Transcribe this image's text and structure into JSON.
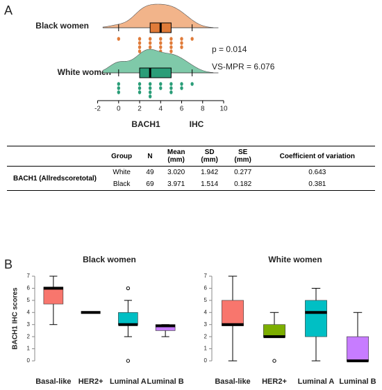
{
  "panels": [
    "A",
    "B"
  ],
  "chart_data": [
    {
      "type": "raincloud",
      "groups": [
        {
          "name": "Black women",
          "color": "#e07b39",
          "fill": "#f2b48a",
          "min": 0,
          "q1": 3,
          "median": 4,
          "q3": 5,
          "max": 7,
          "points": [
            0,
            2,
            2,
            2,
            2,
            3,
            3,
            3,
            3,
            4,
            4,
            4,
            4,
            5,
            5,
            5,
            5,
            6,
            6,
            6,
            7
          ]
        },
        {
          "name": "White women",
          "color": "#2a9d78",
          "fill": "#7fc9a9",
          "min": 0,
          "q1": 2,
          "median": 3,
          "q3": 5,
          "max": 7,
          "points": [
            0,
            0,
            0,
            2,
            2,
            2,
            3,
            3,
            3,
            3,
            4,
            4,
            5,
            5,
            5,
            6,
            6,
            7
          ]
        }
      ],
      "annotations": [
        "p = 0.014",
        "VS-MPR = 6.076"
      ],
      "xlabel_parts": [
        "BACH1",
        "IHC"
      ],
      "xlim": [
        -2.5,
        10
      ],
      "xticks": [
        -2,
        0,
        2,
        4,
        6,
        8,
        10
      ]
    },
    {
      "type": "box",
      "title": "Black women",
      "ylabel": "BACH1 IHC scores",
      "categories": [
        "Basal-like",
        "HER2+",
        "Luminal A",
        "Luminal B"
      ],
      "colors": [
        "#f8766d",
        "#7cae00",
        "#00bfc4",
        "#c77cff"
      ],
      "boxes": [
        {
          "min": 3,
          "q1": 4.7,
          "median": 6,
          "q3": 6.1,
          "max": 7,
          "outliers": []
        },
        {
          "min": 4,
          "q1": 4,
          "median": 4,
          "q3": 4,
          "max": 4,
          "outliers": []
        },
        {
          "min": 2,
          "q1": 3,
          "median": 3,
          "q3": 4,
          "max": 5,
          "outliers": [
            0,
            6
          ]
        },
        {
          "min": 2,
          "q1": 2.5,
          "median": 2.9,
          "q3": 3,
          "max": 3,
          "outliers": []
        }
      ],
      "ylim": [
        0,
        7
      ],
      "yticks": [
        0,
        1,
        2,
        3,
        4,
        5,
        6,
        7
      ]
    },
    {
      "type": "box",
      "title": "White women",
      "categories": [
        "Basal-like",
        "HER2+",
        "Luminal A",
        "Luminal B"
      ],
      "colors": [
        "#f8766d",
        "#7cae00",
        "#00bfc4",
        "#c77cff"
      ],
      "boxes": [
        {
          "min": 0,
          "q1": 2.9,
          "median": 3,
          "q3": 5,
          "max": 7,
          "outliers": []
        },
        {
          "min": 2,
          "q1": 2,
          "median": 2,
          "q3": 3,
          "max": 4,
          "outliers": [
            0
          ]
        },
        {
          "min": 0,
          "q1": 2,
          "median": 4,
          "q3": 5,
          "max": 6,
          "outliers": []
        },
        {
          "min": 0,
          "q1": 0,
          "median": 0,
          "q3": 2,
          "max": 4,
          "outliers": []
        }
      ],
      "ylim": [
        0,
        7
      ],
      "yticks": [
        0,
        1,
        2,
        3,
        4,
        5,
        6,
        7
      ]
    }
  ],
  "table": {
    "header": [
      "Group",
      "N",
      "Mean (mm)",
      "SD (mm)",
      "SE (mm)",
      "Coefficient of variation"
    ],
    "row_label": "BACH1 (Allredscoretotal)",
    "rows": [
      [
        "White",
        "49",
        "3.020",
        "1.942",
        "0.277",
        "0.643"
      ],
      [
        "Black",
        "69",
        "3.971",
        "1.514",
        "0.182",
        "0.381"
      ]
    ]
  }
}
